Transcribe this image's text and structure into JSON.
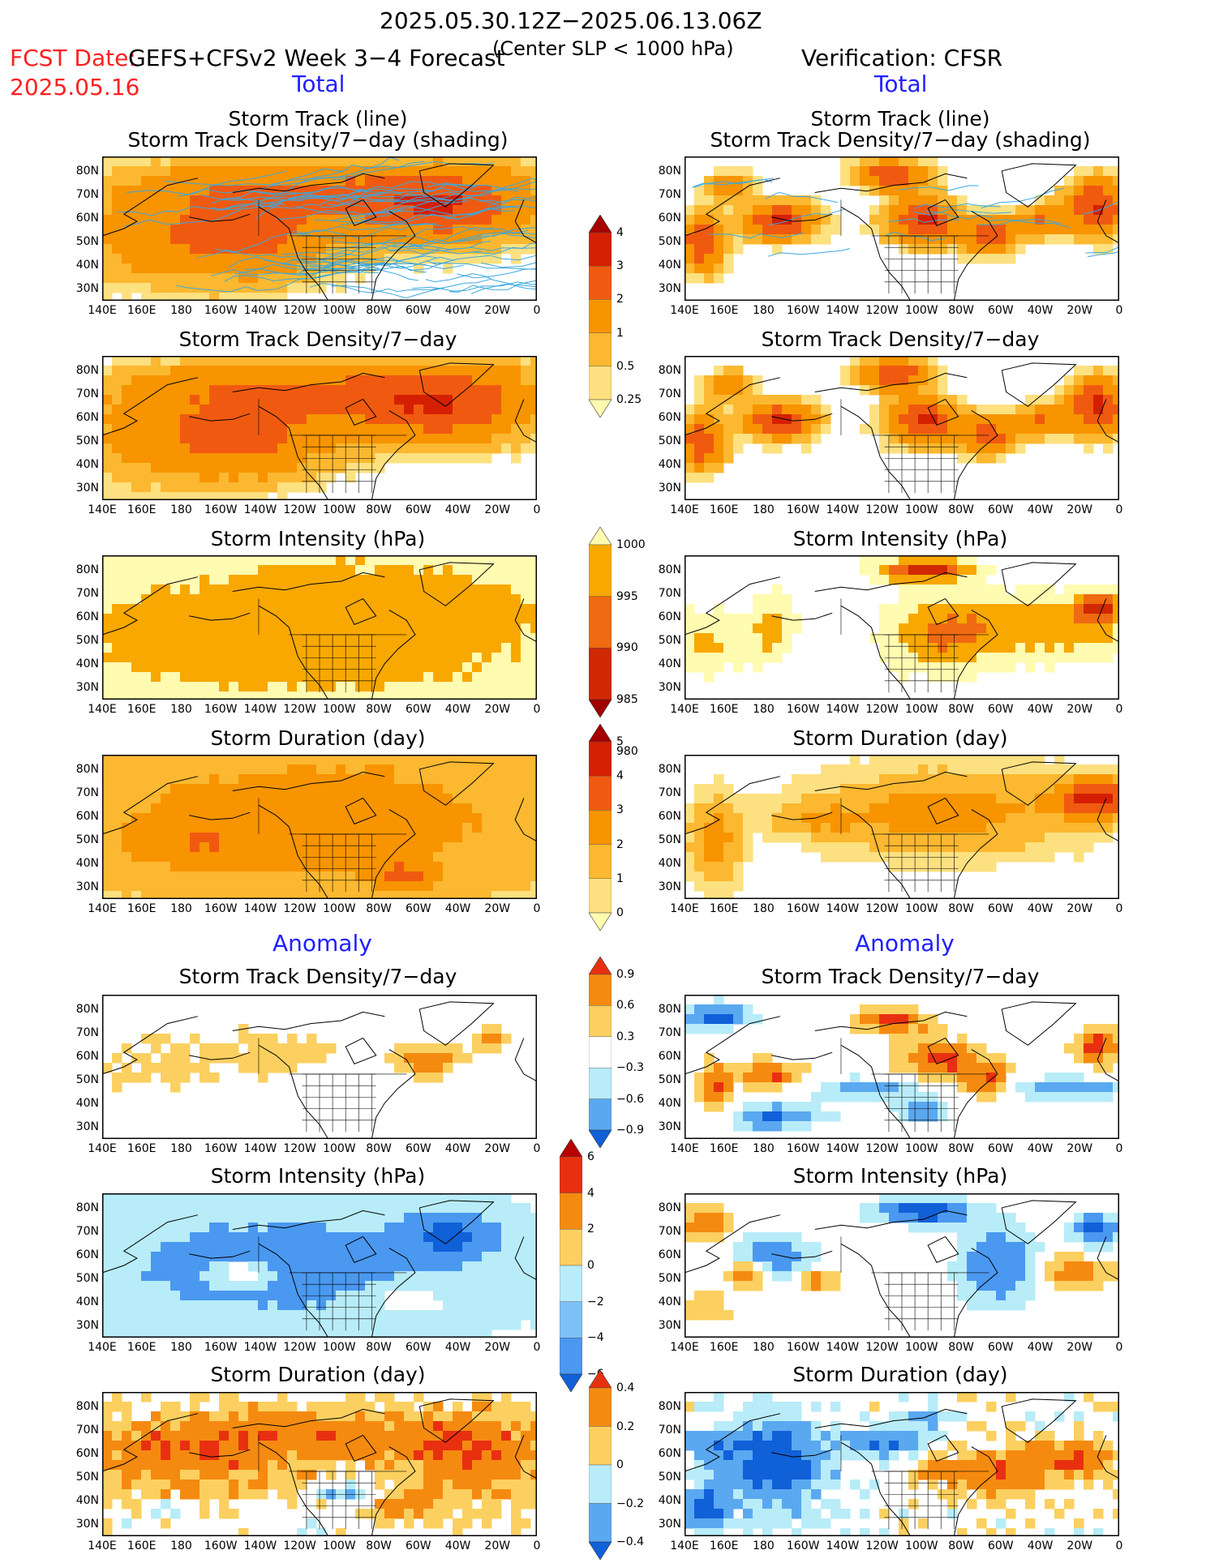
{
  "header": {
    "period": "2025.05.30.12Z−2025.06.13.06Z",
    "fcst_label": "FCST Date:",
    "fcst_date": "2025.05.16",
    "model": "GEFS+CFSv2 Week 3−4 Forecast",
    "criterion": "(Center SLP < 1000 hPa)",
    "verification": "Verification: CFSR"
  },
  "sections": {
    "total": "Total",
    "anomaly": "Anomaly"
  },
  "titles": {
    "track_line": "Storm Track (line)",
    "track_shading": "Storm Track Density/7−day (shading)",
    "density": "Storm Track Density/7−day",
    "intensity": "Storm Intensity (hPa)",
    "duration": "Storm Duration (day)"
  },
  "axes": {
    "lat_labels": [
      "80N",
      "70N",
      "60N",
      "50N",
      "40N",
      "30N"
    ],
    "lon_labels": [
      "140E",
      "160E",
      "180",
      "160W",
      "140W",
      "120W",
      "100W",
      "80W",
      "60W",
      "40W",
      "20W",
      "0"
    ]
  },
  "colorbars": {
    "density_total": {
      "labels": [
        "4",
        "3",
        "2",
        "1",
        "0.5",
        "0.25"
      ],
      "colors": [
        "#a50000",
        "#d42000",
        "#f05a10",
        "#f79400",
        "#fbb830",
        "#fde080",
        "#fffbb0"
      ]
    },
    "intensity_total": {
      "labels": [
        "1000",
        "995",
        "990",
        "985",
        "980"
      ],
      "colors": [
        "#fffbb0",
        "#f8a800",
        "#ef6a10",
        "#d02800",
        "#a00000"
      ]
    },
    "duration_total": {
      "labels": [
        "5",
        "4",
        "3",
        "2",
        "1",
        "0"
      ],
      "colors": [
        "#a50000",
        "#d42000",
        "#f05a10",
        "#f79400",
        "#fbb830",
        "#fde080",
        "#fffbb0"
      ]
    },
    "density_anom": {
      "labels": [
        "0.9",
        "0.6",
        "0.3",
        "−0.3",
        "−0.6",
        "−0.9"
      ],
      "colors": [
        "#e83010",
        "#f58a10",
        "#fbd060",
        "#ffffff",
        "#b8ecf8",
        "#5aa8f0",
        "#1060d8"
      ]
    },
    "intensity_anom": {
      "labels": [
        "6",
        "4",
        "2",
        "0",
        "−2",
        "−4",
        "−6"
      ],
      "colors": [
        "#b80000",
        "#e83010",
        "#f58a10",
        "#fbd060",
        "#b8ecf8",
        "#7ec0f8",
        "#4a98f0",
        "#1060d8"
      ]
    },
    "duration_anom": {
      "labels": [
        "0.4",
        "0.2",
        "0",
        "−0.2",
        "−0.4"
      ],
      "colors": [
        "#e83010",
        "#f58a10",
        "#fbd060",
        "#b8ecf8",
        "#5aa8f0",
        "#1060d8"
      ]
    }
  },
  "colors": {
    "track_line": "#3aa8e0",
    "header_red": "#ff2020",
    "section_blue": "#2020ff"
  }
}
